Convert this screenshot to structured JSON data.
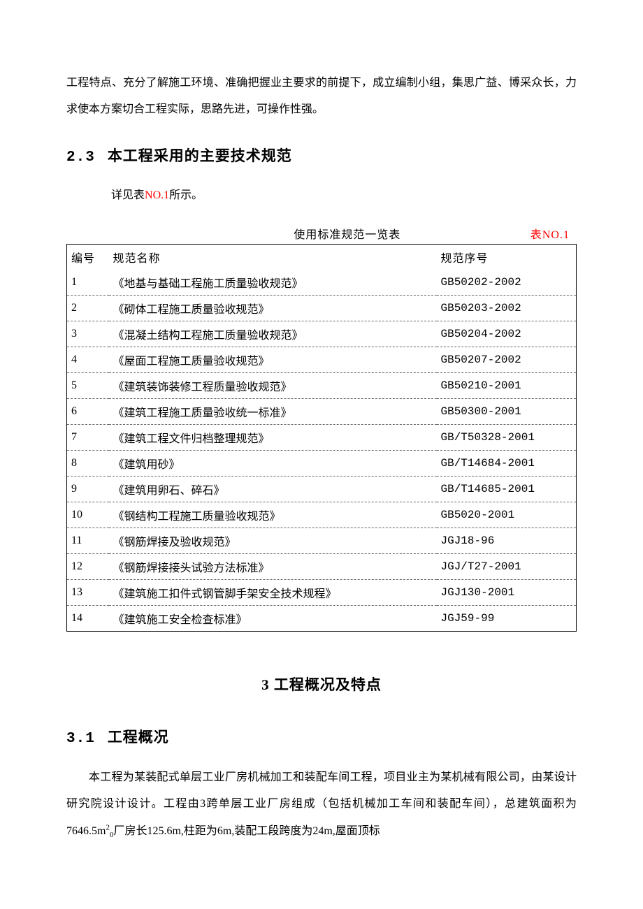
{
  "intro_paragraph": "工程特点、充分了解施工环境、准确把握业主要求的前提下，成立编制小组，集思广益、博采众长，力求使本方案切合工程实际，思路先进，可操作性强。",
  "section_2_3": {
    "number": "2.3",
    "title": "本工程采用的主要技术规范",
    "detail_prefix": "详见表",
    "detail_ref": "NO.1",
    "detail_suffix": "所示。"
  },
  "table": {
    "caption_center": "使用标准规范一览表",
    "caption_right": "表NO.1",
    "headers": {
      "num": "编号",
      "name": "规范名称",
      "code": "规范序号"
    },
    "rows": [
      {
        "num": "1",
        "name": "《地基与基础工程施工质量验收规范》",
        "code": "GB50202-2002"
      },
      {
        "num": "2",
        "name": "《砌体工程施工质量验收规范》",
        "code": "GB50203-2002"
      },
      {
        "num": "3",
        "name": "《混凝土结构工程施工质量验收规范》",
        "code": "GB50204-2002"
      },
      {
        "num": "4",
        "name": "《屋面工程施工质量验收规范》",
        "code": "GB50207-2002"
      },
      {
        "num": "5",
        "name": "《建筑装饰装修工程质量验收规范》",
        "code": "GB50210-2001"
      },
      {
        "num": "6",
        "name": "《建筑工程施工质量验收统一标准》",
        "code": "GB50300-2001"
      },
      {
        "num": "7",
        "name": "《建筑工程文件归档整理规范》",
        "code": "GB/T50328-2001"
      },
      {
        "num": "8",
        "name": "《建筑用砂》",
        "code": "GB/T14684-2001"
      },
      {
        "num": "9",
        "name": "《建筑用卵石、碎石》",
        "code": "GB/T14685-2001"
      },
      {
        "num": "10",
        "name": "《钢结构工程施工质量验收规范》",
        "code": "GB5020-2001"
      },
      {
        "num": "11",
        "name": "《钢筋焊接及验收规范》",
        "code": "JGJ18-96"
      },
      {
        "num": "12",
        "name": "《钢筋焊接接头试验方法标准》",
        "code": "JGJ/T27-2001"
      },
      {
        "num": "13",
        "name": "《建筑施工扣件式钢管脚手架安全技术规程》",
        "code": "JGJ130-2001"
      },
      {
        "num": "14",
        "name": "《建筑施工安全检查标准》",
        "code": "JGJ59-99"
      }
    ]
  },
  "chapter_3": {
    "title": "3 工程概况及特点"
  },
  "section_3_1": {
    "number": "3.1",
    "title": "工程概况",
    "body_part1": "本工程为某装配式单层工业厂房机械加工和装配车间工程，项目业主为某机械有限公司，由某设计研究院设计设计。工程由3跨单层工业厂房组成（包括机械加工车间和装配车间），总建筑面积为7646.5m",
    "body_sup": "2",
    "body_sub": "0",
    "body_part2": "厂房长125.6m,柱距为6m,装配工段跨度为24m,屋面顶标"
  },
  "styles": {
    "body_font_size": 16,
    "heading_font_size": 21,
    "line_height": 2.4,
    "text_color": "#000000",
    "red_color": "#ff0000",
    "background_color": "#ffffff",
    "table_border_color": "#000000",
    "table_dash_color": "#666666",
    "col_widths": {
      "num": 60,
      "code": 200
    }
  }
}
